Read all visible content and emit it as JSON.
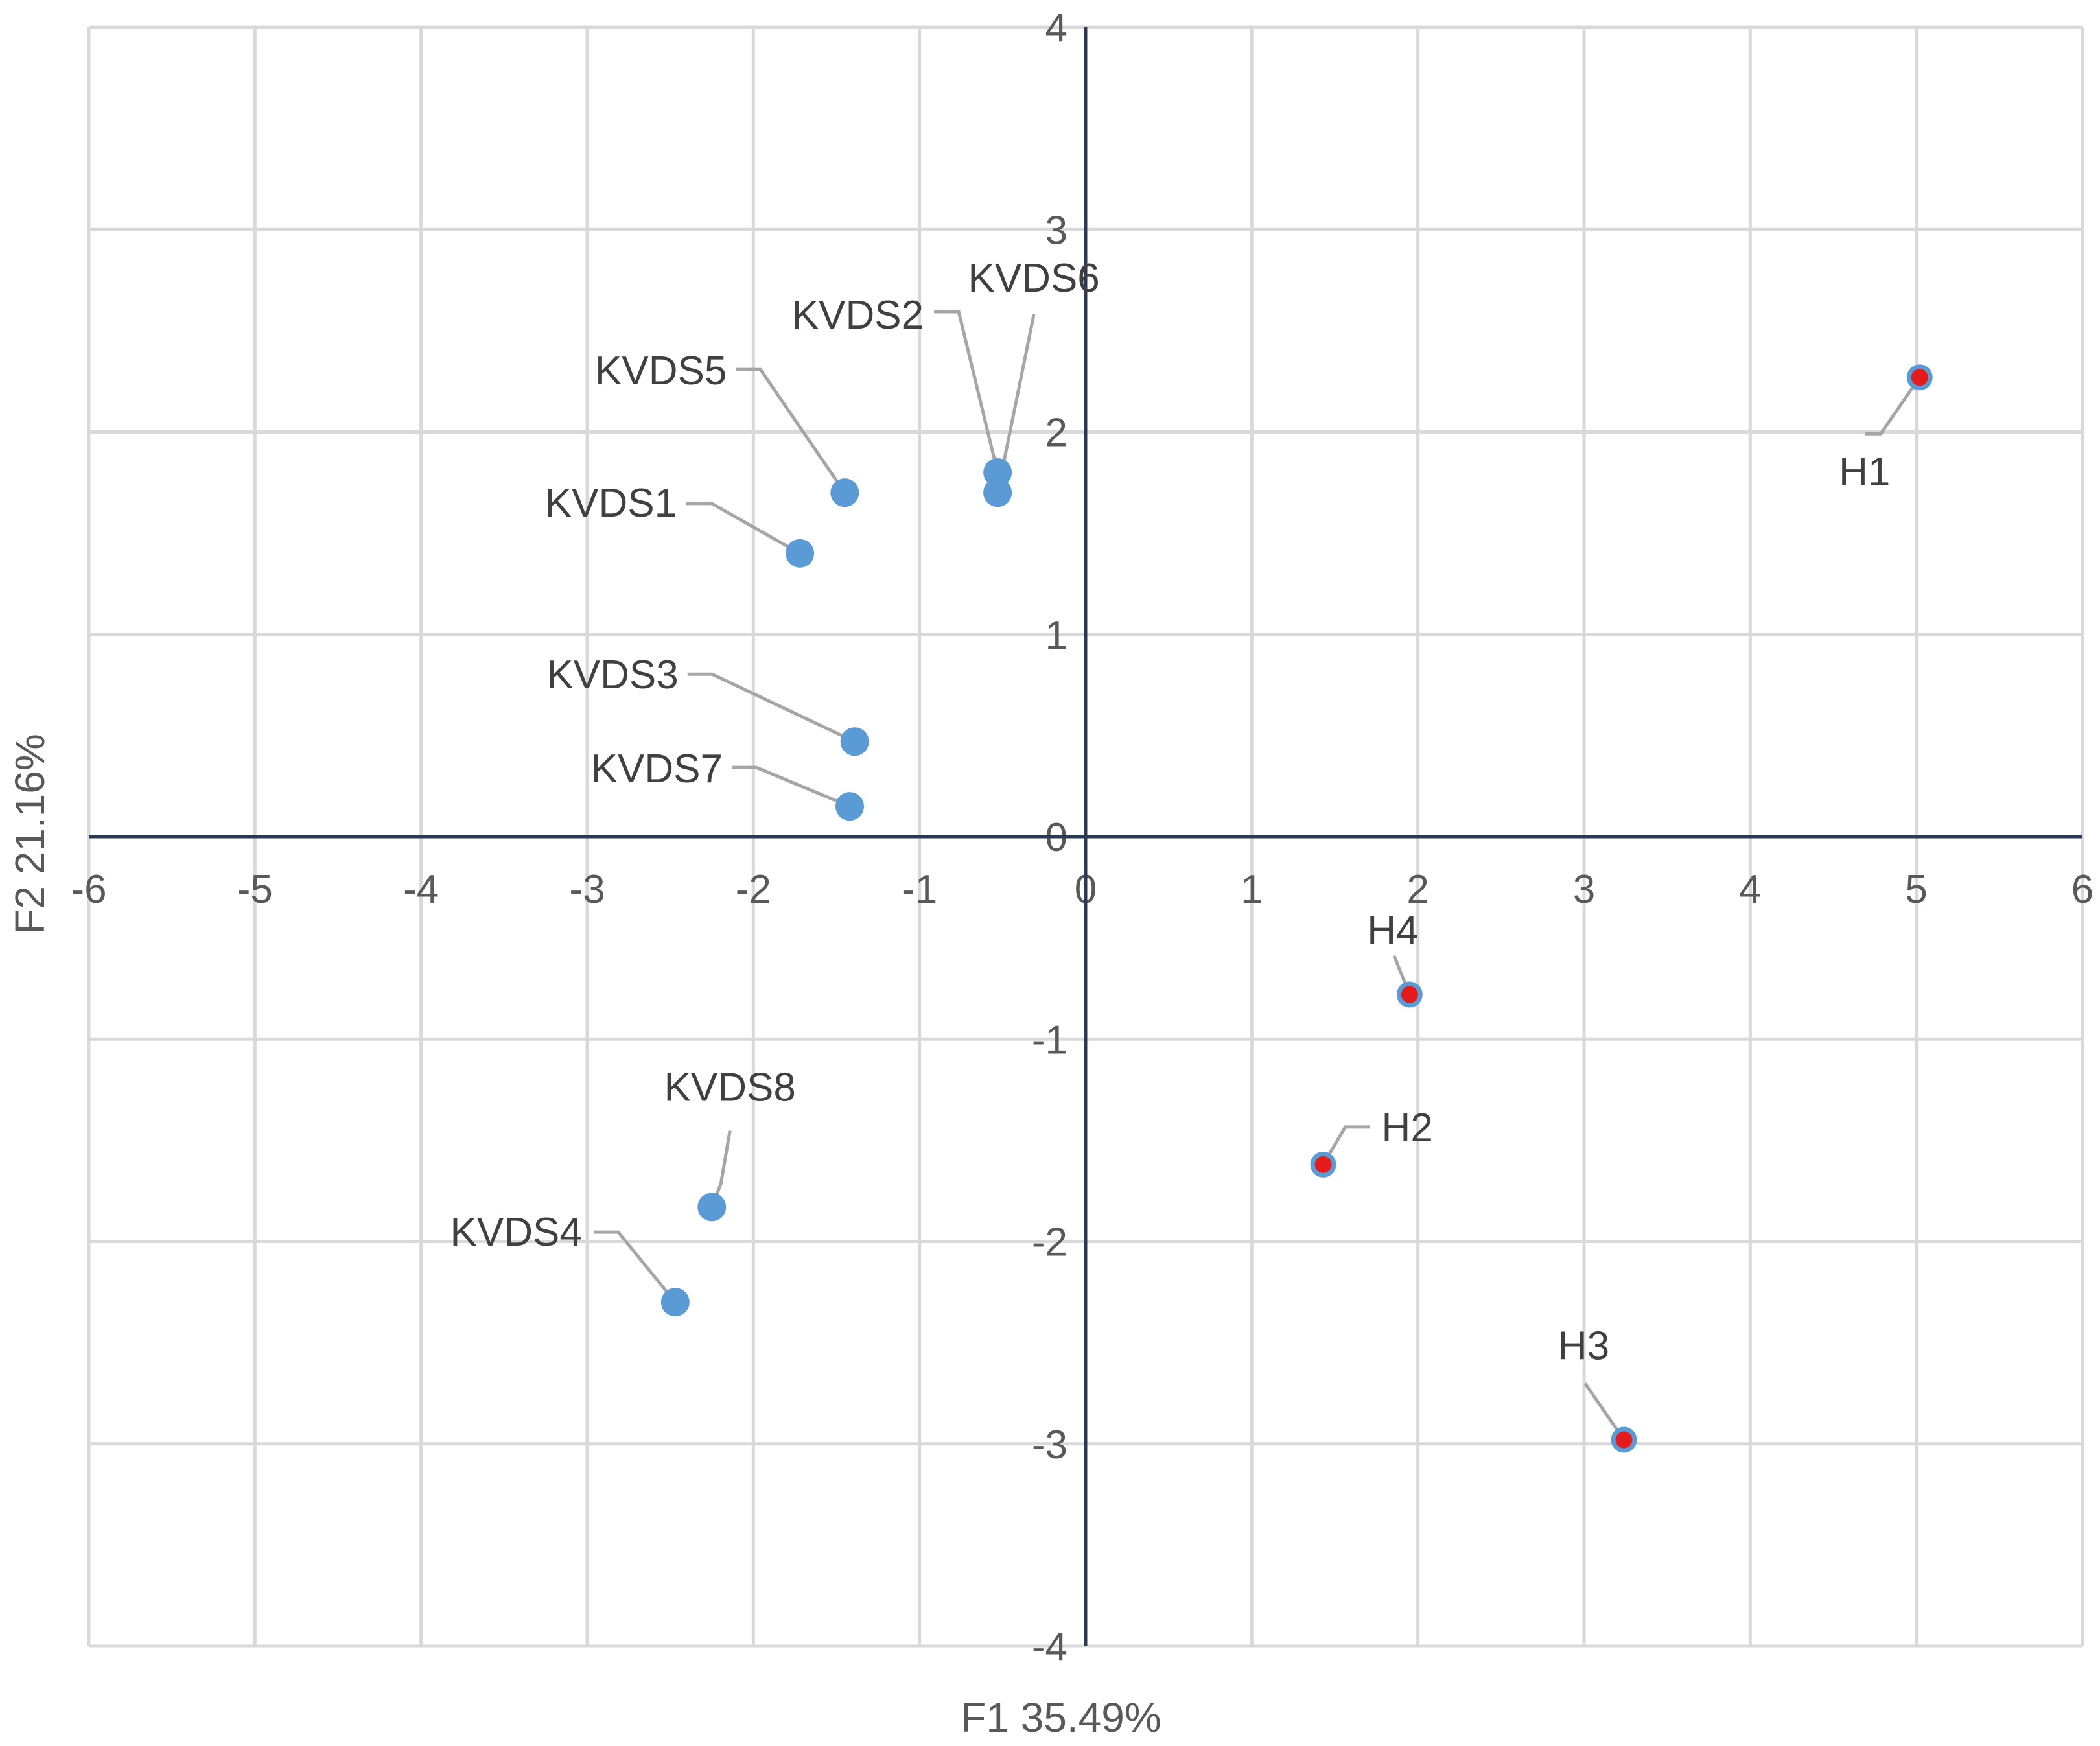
{
  "chart_data": {
    "type": "scatter",
    "title": "",
    "xlabel": "F1 35.49%",
    "ylabel": "F2 21.16%",
    "xlim": [
      -6,
      6
    ],
    "ylim": [
      -4,
      4
    ],
    "xticks": [
      -6,
      -5,
      -4,
      -3,
      -2,
      -1,
      0,
      1,
      2,
      3,
      4,
      5,
      6
    ],
    "yticks": [
      -4,
      -3,
      -2,
      -1,
      0,
      1,
      2,
      3,
      4
    ],
    "grid": true,
    "series": [
      {
        "name": "KVDS",
        "color": "#5b9bd5",
        "points": [
          {
            "label": "KVDS1",
            "x": -1.72,
            "y": 1.4
          },
          {
            "label": "KVDS2",
            "x": -0.53,
            "y": 1.8
          },
          {
            "label": "KVDS3",
            "x": -1.39,
            "y": 0.47
          },
          {
            "label": "KVDS4",
            "x": -2.47,
            "y": -2.3
          },
          {
            "label": "KVDS5",
            "x": -1.45,
            "y": 1.7
          },
          {
            "label": "KVDS6",
            "x": -0.53,
            "y": 1.7
          },
          {
            "label": "KVDS7",
            "x": -1.42,
            "y": 0.15
          },
          {
            "label": "KVDS8",
            "x": -2.25,
            "y": -1.83
          }
        ]
      },
      {
        "name": "H",
        "color": "#e31b1b",
        "points": [
          {
            "label": "H1",
            "x": 5.02,
            "y": 2.27
          },
          {
            "label": "H2",
            "x": 1.43,
            "y": -1.62
          },
          {
            "label": "H3",
            "x": 3.24,
            "y": -2.98
          },
          {
            "label": "H4",
            "x": 1.95,
            "y": -0.78
          }
        ]
      }
    ]
  }
}
